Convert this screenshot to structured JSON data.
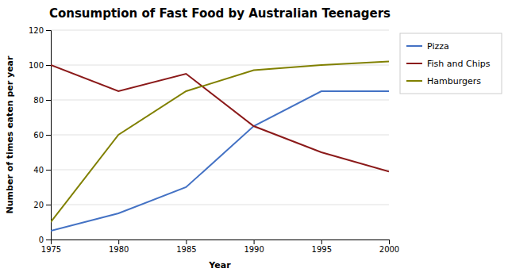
{
  "chart_data": {
    "type": "line",
    "title": "Consumption of Fast Food by Australian Teenagers",
    "x_label": "Year",
    "y_label": "Number of times eaten per year",
    "x": [
      1975,
      1980,
      1985,
      1990,
      1995,
      2000
    ],
    "series": [
      {
        "name": "Pizza",
        "color": "#4472C4",
        "values": [
          5,
          15,
          30,
          65,
          85,
          85
        ]
      },
      {
        "name": "Fish and Chips",
        "color": "#8B1A1A",
        "values": [
          100,
          85,
          95,
          65,
          50,
          39
        ]
      },
      {
        "name": "Hamburgers",
        "color": "#808000",
        "values": [
          10,
          60,
          85,
          97,
          100,
          102
        ]
      }
    ],
    "xlim": [
      1975,
      2000
    ],
    "xticks": [
      1975,
      1980,
      1985,
      1990,
      1995,
      2000
    ],
    "ylim": [
      0,
      120
    ],
    "yticks": [
      0,
      20,
      40,
      60,
      80,
      100,
      120
    ],
    "grid": "y",
    "legend": "right"
  }
}
